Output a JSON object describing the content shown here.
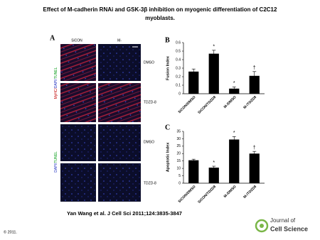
{
  "header": {
    "title_lines": [
      "Effect of M-cadherin RNAi and GSK-3β inhibition on myogenic differentiation of C2C12",
      "myoblasts."
    ]
  },
  "panel_a": {
    "label": "A",
    "columns": [
      "SiCON",
      "M-"
    ],
    "row_labels": [
      "DMSO",
      "TDZD-8",
      "DMSO",
      "TDZD-8"
    ],
    "stain_labels": [
      [
        "MyHC/",
        "DAPI/",
        "TUNEL"
      ],
      [
        "DAPI/",
        "TUNEL"
      ]
    ]
  },
  "chart_data": [
    {
      "type": "bar",
      "panel_label": "B",
      "ylabel": "Fusion Index",
      "color": "#000000",
      "categories": [
        "SiCON/DMSO",
        "SiCON/TDZD8",
        "M-/DMSO",
        "M-/TDZD8"
      ],
      "values": [
        0.26,
        0.47,
        0.06,
        0.21
      ],
      "errors": [
        0.03,
        0.04,
        0.02,
        0.05
      ],
      "annotations": [
        null,
        "*",
        "*",
        "†"
      ],
      "ylim": [
        0,
        0.6
      ],
      "yticks": [
        0,
        0.1,
        0.2,
        0.3,
        0.4,
        0.5,
        0.6
      ]
    },
    {
      "type": "bar",
      "panel_label": "C",
      "ylabel": "Apoptotic Index",
      "color": "#000000",
      "categories": [
        "SiCON/DMSO",
        "SiCON/TDZD8",
        "M-/DMSO",
        "M-/TDZD8"
      ],
      "values": [
        15.5,
        10.5,
        29.5,
        20
      ],
      "errors": [
        0.7,
        1,
        2,
        1.5
      ],
      "annotations": [
        null,
        "*",
        "*",
        "†"
      ],
      "ylim": [
        0,
        35
      ],
      "yticks": [
        0,
        5,
        10,
        15,
        20,
        25,
        30,
        35
      ]
    }
  ],
  "footer": {
    "citation": "Yan Wang et al. J Cell Sci 2011;124:3835-3847",
    "copyright": "© 2011.",
    "logo_top": "Journal of",
    "logo_bottom": "Cell Science"
  }
}
